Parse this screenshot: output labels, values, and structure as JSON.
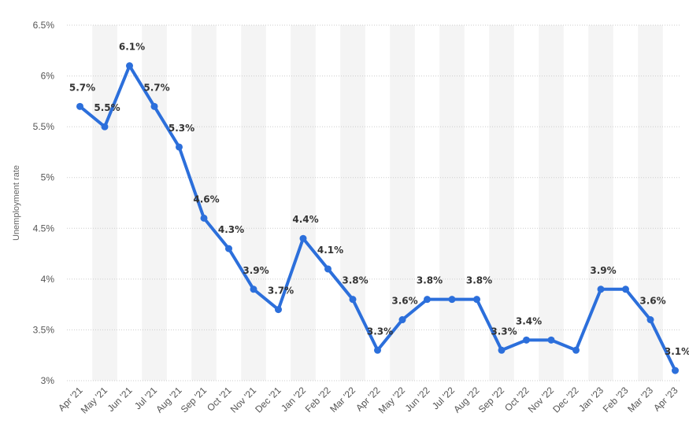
{
  "chart_data": {
    "type": "line",
    "categories": [
      "Apr '21",
      "May '21",
      "Jun '21",
      "Jul '21",
      "Aug '21",
      "Sep '21",
      "Oct '21",
      "Nov '21",
      "Dec '21",
      "Jan '22",
      "Feb '22",
      "Mar '22",
      "Apr '22",
      "May '22",
      "Jun '22",
      "Jul '22",
      "Aug '22",
      "Sep '22",
      "Oct '22",
      "Nov '22",
      "Dec '22",
      "Jan '23",
      "Feb '23",
      "Mar '23",
      "Apr '23"
    ],
    "series": [
      {
        "values": [
          5.7,
          5.5,
          6.1,
          5.7,
          5.3,
          4.6,
          4.3,
          3.9,
          3.7,
          4.4,
          4.1,
          3.8,
          3.3,
          3.6,
          3.8,
          3.8,
          3.8,
          3.3,
          3.4,
          3.4,
          3.3,
          3.9,
          3.9,
          3.6,
          3.1
        ],
        "point_labels": [
          "5.7%",
          "5.5%",
          "6.1%",
          "5.7%",
          "5.3%",
          "4.6%",
          "4.3%",
          "3.9%",
          "3.7%",
          "4.4%",
          "4.1%",
          "3.8%",
          "3.3%",
          "3.6%",
          "3.8%",
          "",
          "3.8%",
          "3.3%",
          "3.4%",
          "",
          "",
          "3.9%",
          "",
          "3.6%",
          "3.1%"
        ],
        "color": "#2c6fdb"
      }
    ],
    "ylabel": "Unemployment rate",
    "ylim": [
      3,
      6.5
    ],
    "yticks": [
      3,
      3.5,
      4,
      4.5,
      5,
      5.5,
      6,
      6.5
    ],
    "ytick_labels": [
      "3%",
      "3.5%",
      "4%",
      "4.5%",
      "5%",
      "5.5%",
      "6%",
      "6.5%"
    ],
    "grid": true,
    "legend": "none"
  }
}
